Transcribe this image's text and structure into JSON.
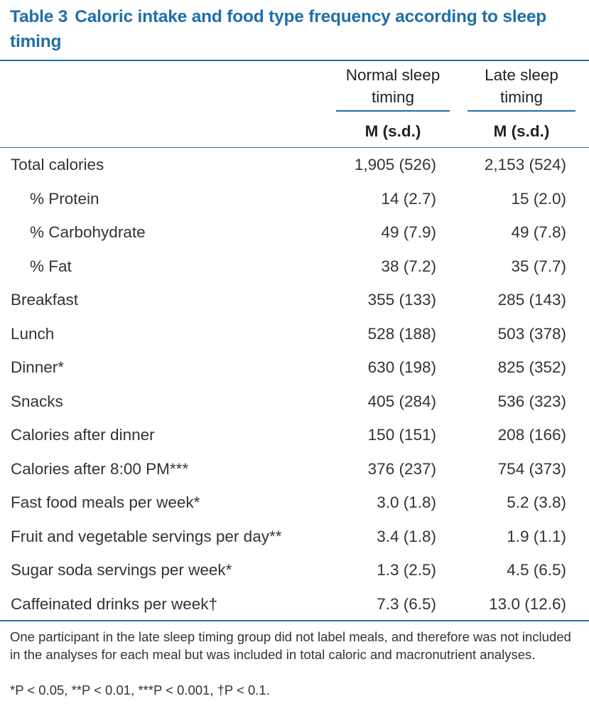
{
  "header": {
    "label": "Table 3",
    "title": "Caloric intake and food type frequency according to sleep timing"
  },
  "table": {
    "columns": [
      "Normal sleep timing",
      "Late sleep timing"
    ],
    "subheader": [
      "M (s.d.)",
      "M (s.d.)"
    ],
    "rows": [
      {
        "label": "Total calories",
        "values": [
          "1,905 (526)",
          "2,153 (524)"
        ],
        "subrows": [
          {
            "label": "% Protein",
            "values": [
              "14 (2.7)",
              "15 (2.0)"
            ]
          },
          {
            "label": "% Carbohydrate",
            "values": [
              "49 (7.9)",
              "49 (7.8)"
            ]
          },
          {
            "label": "% Fat",
            "values": [
              "38 (7.2)",
              "35 (7.7)"
            ]
          }
        ]
      },
      {
        "label": "Breakfast",
        "values": [
          "355 (133)",
          "285 (143)"
        ]
      },
      {
        "label": "Lunch",
        "values": [
          "528 (188)",
          "503 (378)"
        ]
      },
      {
        "label": "Dinner*",
        "values": [
          "630 (198)",
          "825 (352)"
        ]
      },
      {
        "label": "Snacks",
        "values": [
          "405 (284)",
          "536 (323)"
        ]
      },
      {
        "label": "Calories after dinner",
        "values": [
          "150 (151)",
          "208 (166)"
        ]
      },
      {
        "label": "Calories after 8:00 PM***",
        "values": [
          "376 (237)",
          "754 (373)"
        ]
      },
      {
        "label": "Fast food meals per week*",
        "values": [
          "3.0 (1.8)",
          "5.2 (3.8)"
        ]
      },
      {
        "label": "Fruit and vegetable servings per day**",
        "values": [
          "3.4 (1.8)",
          "1.9 (1.1)"
        ]
      },
      {
        "label": "Sugar soda servings per week*",
        "values": [
          "1.3 (2.5)",
          "4.5 (6.5)"
        ]
      },
      {
        "label": "Caffeinated drinks per week†",
        "values": [
          "7.3 (6.5)",
          "13.0 (12.6)"
        ]
      }
    ]
  },
  "footnotes": [
    "One participant in the late sleep timing group did not label meals, and therefore was not included in the analyses for each meal but was included in total caloric and macronutrient analyses.",
    "*P < 0.05, **P < 0.01, ***P < 0.001, †P < 0.1."
  ]
}
